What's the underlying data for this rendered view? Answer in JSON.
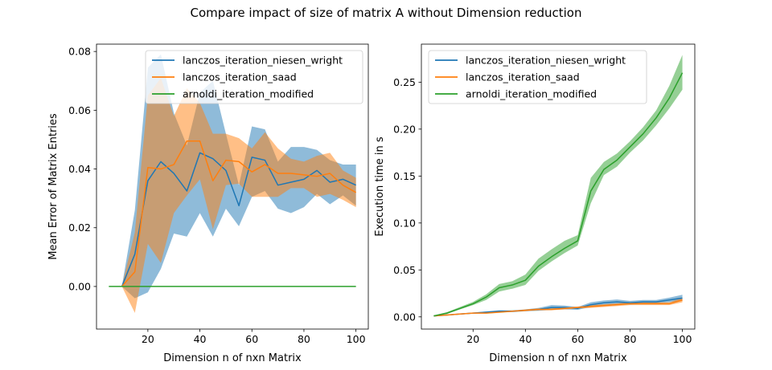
{
  "figure_title": "Compare impact of size of matrix A without Dimension reduction",
  "colors": {
    "lanczos_iteration_niesen_wright": "#1f77b4",
    "lanczos_iteration_saad": "#ff7f0e",
    "arnoldi_iteration_modified": "#2ca02c"
  },
  "chart_data": [
    {
      "type": "line",
      "title": "",
      "xlabel": "Dimension n of nxn Matrix",
      "ylabel": "Mean Error of Matrix Entries",
      "xlim": [
        0.25,
        104.75
      ],
      "ylim": [
        -0.0145,
        0.0825
      ],
      "xticks": [
        20,
        40,
        60,
        80,
        100
      ],
      "yticks": [
        0.0,
        0.02,
        0.04,
        0.06,
        0.08
      ],
      "ytick_labels": [
        "0.00",
        "0.02",
        "0.04",
        "0.06",
        "0.08"
      ],
      "legend_position": "upper right",
      "grid": false,
      "series": [
        {
          "name": "lanczos_iteration_niesen_wright",
          "color": "#1f77b4",
          "x": [
            10,
            15,
            20,
            25,
            30,
            35,
            40,
            45,
            50,
            55,
            60,
            65,
            70,
            75,
            80,
            85,
            90,
            95,
            100
          ],
          "y": [
            0.0,
            0.011,
            0.036,
            0.0425,
            0.0385,
            0.0325,
            0.0455,
            0.0435,
            0.0395,
            0.0275,
            0.044,
            0.043,
            0.0345,
            0.0355,
            0.0365,
            0.0395,
            0.0355,
            0.0365,
            0.0345
          ],
          "lower": [
            0.0,
            -0.004,
            -0.002,
            0.006,
            0.018,
            0.017,
            0.025,
            0.017,
            0.0265,
            0.0205,
            0.0305,
            0.0325,
            0.0265,
            0.025,
            0.027,
            0.0315,
            0.028,
            0.031,
            0.0275
          ],
          "upper": [
            0.0,
            0.026,
            0.0745,
            0.079,
            0.059,
            0.048,
            0.066,
            0.07,
            0.052,
            0.0345,
            0.0545,
            0.0535,
            0.0425,
            0.0475,
            0.0475,
            0.0465,
            0.043,
            0.0415,
            0.0415
          ]
        },
        {
          "name": "lanczos_iteration_saad",
          "color": "#ff7f0e",
          "x": [
            10,
            15,
            20,
            25,
            30,
            35,
            40,
            45,
            50,
            55,
            60,
            65,
            70,
            75,
            80,
            85,
            90,
            95,
            100
          ],
          "y": [
            0.0,
            0.005,
            0.0405,
            0.04,
            0.0415,
            0.0495,
            0.0495,
            0.036,
            0.043,
            0.0425,
            0.039,
            0.0415,
            0.0385,
            0.0385,
            0.038,
            0.0375,
            0.0385,
            0.0345,
            0.032
          ],
          "lower": [
            0.0,
            -0.009,
            0.0145,
            0.008,
            0.025,
            0.031,
            0.0365,
            0.0195,
            0.0345,
            0.035,
            0.0305,
            0.0305,
            0.0305,
            0.0335,
            0.0335,
            0.0305,
            0.0315,
            0.0295,
            0.027
          ],
          "upper": [
            0.0,
            0.0185,
            0.065,
            0.071,
            0.058,
            0.0675,
            0.0625,
            0.052,
            0.052,
            0.0505,
            0.047,
            0.0525,
            0.047,
            0.0435,
            0.0425,
            0.0445,
            0.0455,
            0.0395,
            0.037
          ]
        },
        {
          "name": "arnoldi_iteration_modified",
          "color": "#2ca02c",
          "x": [
            5,
            10,
            15,
            20,
            25,
            30,
            35,
            40,
            45,
            50,
            55,
            60,
            65,
            70,
            75,
            80,
            85,
            90,
            95,
            100
          ],
          "y": [
            0,
            0,
            0,
            0,
            0,
            0,
            0,
            0,
            0,
            0,
            0,
            0,
            0,
            0,
            0,
            0,
            0,
            0,
            0,
            0
          ]
        }
      ]
    },
    {
      "type": "line",
      "title": "",
      "xlabel": "Dimension n of nxn Matrix",
      "ylabel": "Execution time in s",
      "xlim": [
        0.25,
        104.75
      ],
      "ylim": [
        -0.013,
        0.2905
      ],
      "xticks": [
        20,
        40,
        60,
        80,
        100
      ],
      "yticks": [
        0.0,
        0.05,
        0.1,
        0.15,
        0.2,
        0.25
      ],
      "ytick_labels": [
        "0.00",
        "0.05",
        "0.10",
        "0.15",
        "0.20",
        "0.25"
      ],
      "legend_position": "upper left",
      "grid": false,
      "series": [
        {
          "name": "lanczos_iteration_niesen_wright",
          "color": "#1f77b4",
          "x": [
            5,
            10,
            15,
            20,
            25,
            30,
            35,
            40,
            45,
            50,
            55,
            60,
            65,
            70,
            75,
            80,
            85,
            90,
            95,
            100
          ],
          "y": [
            0.001,
            0.002,
            0.003,
            0.004,
            0.005,
            0.006,
            0.006,
            0.007,
            0.008,
            0.01,
            0.01,
            0.009,
            0.013,
            0.015,
            0.016,
            0.015,
            0.016,
            0.016,
            0.018,
            0.02
          ],
          "lower": [
            0.0005,
            0.0015,
            0.0025,
            0.0035,
            0.0042,
            0.005,
            0.005,
            0.006,
            0.0065,
            0.0075,
            0.008,
            0.0075,
            0.0105,
            0.0125,
            0.0135,
            0.013,
            0.014,
            0.0145,
            0.0155,
            0.017
          ],
          "upper": [
            0.0015,
            0.0025,
            0.0035,
            0.0045,
            0.0058,
            0.007,
            0.007,
            0.008,
            0.0095,
            0.0125,
            0.012,
            0.0105,
            0.0155,
            0.0175,
            0.0185,
            0.017,
            0.018,
            0.018,
            0.0205,
            0.0235
          ]
        },
        {
          "name": "lanczos_iteration_saad",
          "color": "#ff7f0e",
          "x": [
            5,
            10,
            15,
            20,
            25,
            30,
            35,
            40,
            45,
            50,
            55,
            60,
            65,
            70,
            75,
            80,
            85,
            90,
            95,
            100
          ],
          "y": [
            0.001,
            0.002,
            0.003,
            0.004,
            0.004,
            0.005,
            0.006,
            0.007,
            0.008,
            0.008,
            0.009,
            0.01,
            0.011,
            0.012,
            0.013,
            0.014,
            0.014,
            0.014,
            0.014,
            0.018
          ],
          "lower": [
            0.0005,
            0.0015,
            0.0025,
            0.0035,
            0.0035,
            0.0045,
            0.0055,
            0.006,
            0.007,
            0.007,
            0.008,
            0.009,
            0.0095,
            0.0105,
            0.0115,
            0.0125,
            0.0125,
            0.0125,
            0.0125,
            0.0155
          ],
          "upper": [
            0.0015,
            0.0025,
            0.0035,
            0.0045,
            0.0045,
            0.0055,
            0.0065,
            0.008,
            0.009,
            0.009,
            0.01,
            0.011,
            0.0125,
            0.0135,
            0.0145,
            0.0155,
            0.0155,
            0.0155,
            0.0155,
            0.0205
          ]
        },
        {
          "name": "arnoldi_iteration_modified",
          "color": "#2ca02c",
          "x": [
            5,
            10,
            15,
            20,
            25,
            30,
            35,
            40,
            45,
            50,
            55,
            60,
            65,
            70,
            75,
            80,
            85,
            90,
            95,
            100
          ],
          "y": [
            0.001,
            0.004,
            0.009,
            0.014,
            0.021,
            0.031,
            0.034,
            0.039,
            0.054,
            0.064,
            0.073,
            0.081,
            0.134,
            0.157,
            0.167,
            0.181,
            0.195,
            0.212,
            0.233,
            0.26
          ],
          "lower": [
            0.0005,
            0.003,
            0.008,
            0.0125,
            0.018,
            0.027,
            0.03,
            0.034,
            0.049,
            0.059,
            0.068,
            0.076,
            0.121,
            0.151,
            0.16,
            0.175,
            0.188,
            0.204,
            0.222,
            0.242
          ],
          "upper": [
            0.0015,
            0.005,
            0.0105,
            0.016,
            0.024,
            0.035,
            0.038,
            0.045,
            0.062,
            0.072,
            0.081,
            0.087,
            0.148,
            0.165,
            0.174,
            0.187,
            0.202,
            0.22,
            0.246,
            0.279
          ]
        }
      ]
    }
  ]
}
